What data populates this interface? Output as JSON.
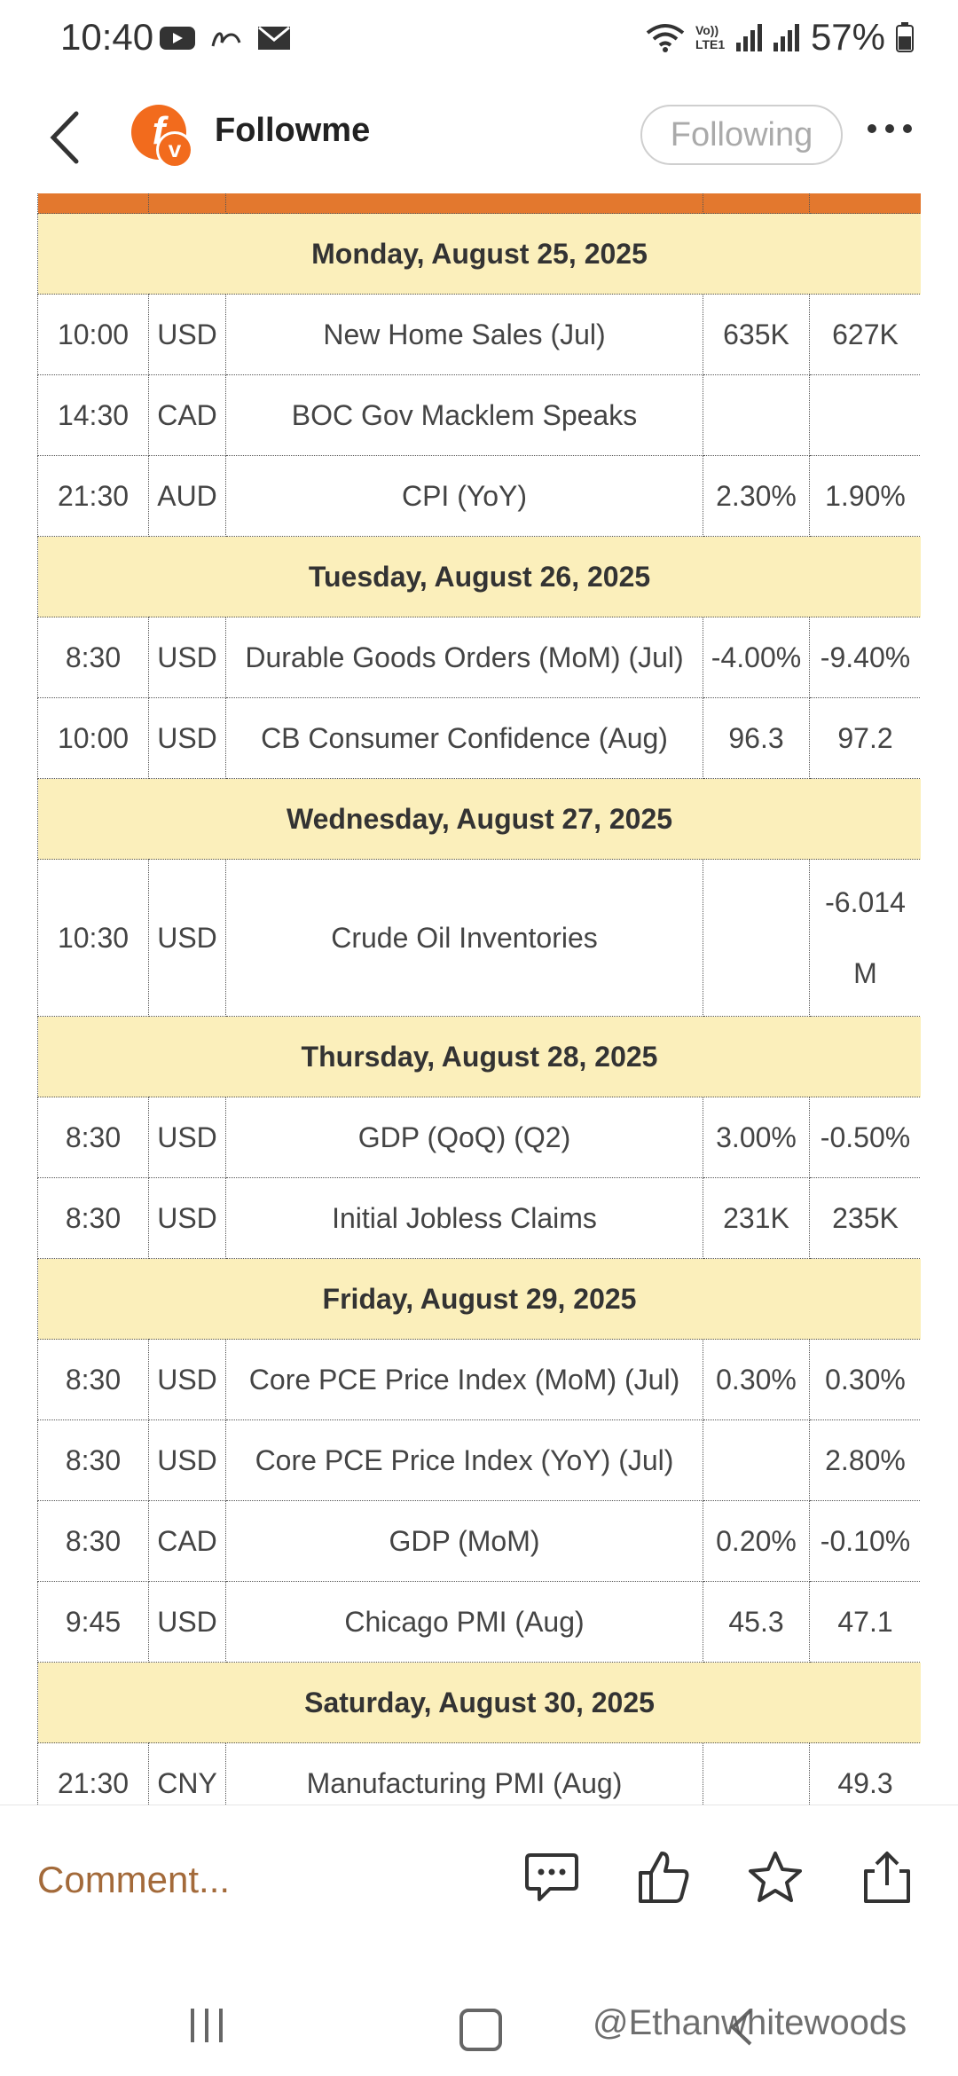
{
  "status_bar": {
    "time": "10:40",
    "battery": "57%",
    "left_icons": [
      "youtube-icon",
      "app-icon",
      "mail-icon"
    ],
    "right_icons": [
      "wifi-icon",
      "volte-icon",
      "signal-icon",
      "signal-icon",
      "battery-icon"
    ],
    "volte_label": "Vo)) LTE1"
  },
  "header": {
    "title": "Followme",
    "avatar_letter": "f",
    "avatar_badge": "v",
    "follow_label": "Following",
    "accent_color": "#f26b1d"
  },
  "table": {
    "groups": [
      {
        "day": "Monday, August 25, 2025",
        "rows": [
          {
            "time": "10:00",
            "currency": "USD",
            "event": "New Home Sales (Jul)",
            "forecast": "635K",
            "previous": "627K"
          },
          {
            "time": "14:30",
            "currency": "CAD",
            "event": "BOC Gov Macklem Speaks",
            "forecast": "",
            "previous": ""
          },
          {
            "time": "21:30",
            "currency": "AUD",
            "event": "CPI (YoY)",
            "forecast": "2.30%",
            "previous": "1.90%"
          }
        ]
      },
      {
        "day": "Tuesday, August 26, 2025",
        "rows": [
          {
            "time": "8:30",
            "currency": "USD",
            "event": "Durable Goods Orders (MoM) (Jul)",
            "forecast": "-4.00%",
            "previous": "-9.40%"
          },
          {
            "time": "10:00",
            "currency": "USD",
            "event": "CB Consumer Confidence (Aug)",
            "forecast": "96.3",
            "previous": "97.2"
          }
        ]
      },
      {
        "day": "Wednesday, August 27, 2025",
        "rows": [
          {
            "time": "10:30",
            "currency": "USD",
            "event": "Crude Oil Inventories",
            "forecast": "",
            "previous": "-6.014 M"
          }
        ]
      },
      {
        "day": "Thursday, August 28, 2025",
        "rows": [
          {
            "time": "8:30",
            "currency": "USD",
            "event": "GDP (QoQ) (Q2)",
            "forecast": "3.00%",
            "previous": "-0.50%"
          },
          {
            "time": "8:30",
            "currency": "USD",
            "event": "Initial Jobless Claims",
            "forecast": "231K",
            "previous": "235K"
          }
        ]
      },
      {
        "day": "Friday, August 29, 2025",
        "rows": [
          {
            "time": "8:30",
            "currency": "USD",
            "event": "Core PCE Price Index (MoM) (Jul)",
            "forecast": "0.30%",
            "previous": "0.30%"
          },
          {
            "time": "8:30",
            "currency": "USD",
            "event": "Core PCE Price Index (YoY) (Jul)",
            "forecast": "",
            "previous": "2.80%"
          },
          {
            "time": "8:30",
            "currency": "CAD",
            "event": "GDP (MoM)",
            "forecast": "0.20%",
            "previous": "-0.10%"
          },
          {
            "time": "9:45",
            "currency": "USD",
            "event": "Chicago PMI (Aug)",
            "forecast": "45.3",
            "previous": "47.1"
          }
        ]
      },
      {
        "day": "Saturday, August 30, 2025",
        "rows": [
          {
            "time": "21:30",
            "currency": "CNY",
            "event": "Manufacturing PMI (Aug)",
            "forecast": "",
            "previous": "49.3"
          }
        ]
      }
    ],
    "day_row_color": "#fbefbb",
    "top_bar_color": "#e3782e"
  },
  "bottom_bar": {
    "comment_placeholder": "Comment...",
    "actions": [
      "comment-icon",
      "like-icon",
      "favorite-icon",
      "share-icon"
    ]
  },
  "nav_bar": {
    "watermark": "@Ethanwhitewoods"
  }
}
